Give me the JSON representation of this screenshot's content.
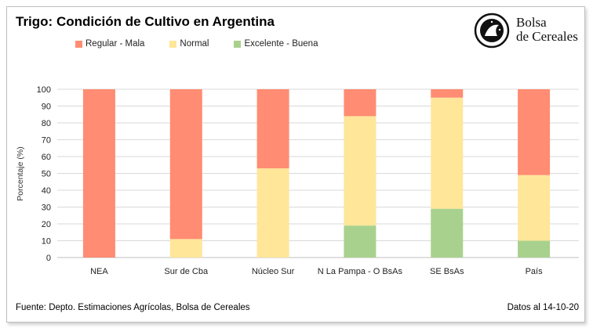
{
  "header": {
    "title": "Trigo: Condición de Cultivo en Argentina"
  },
  "logo": {
    "line1": "Bolsa",
    "line2": "de Cereales",
    "icon": "bolsa-de-cereales-seal-icon"
  },
  "footer": {
    "source": "Fuente: Depto. Estimaciones Agrícolas, Bolsa de Cereales",
    "date": "Datos al 14-10-20"
  },
  "chart_data": {
    "type": "bar",
    "stacked": true,
    "title": "Trigo: Condición de Cultivo en Argentina",
    "xlabel": "",
    "ylabel": "Porcentaje (%)",
    "ylim": [
      0,
      100
    ],
    "yticks": [
      0,
      10,
      20,
      30,
      40,
      50,
      60,
      70,
      80,
      90,
      100
    ],
    "grid": true,
    "legend_position": "top-left",
    "categories": [
      "NEA",
      "Sur de Cba",
      "Núcleo Sur",
      "N La Pampa - O BsAs",
      "SE BsAs",
      "País"
    ],
    "series": [
      {
        "name": "Excelente - Buena",
        "color": "#a9d18e",
        "values": [
          0,
          0,
          0,
          19,
          29,
          10
        ]
      },
      {
        "name": "Normal",
        "color": "#ffe699",
        "values": [
          0,
          11,
          53,
          65,
          66,
          39
        ]
      },
      {
        "name": "Regular - Mala",
        "color": "#ff8c73",
        "values": [
          100,
          89,
          47,
          16,
          5,
          51
        ]
      }
    ],
    "legend_order": [
      "Regular - Mala",
      "Normal",
      "Excelente - Buena"
    ]
  }
}
